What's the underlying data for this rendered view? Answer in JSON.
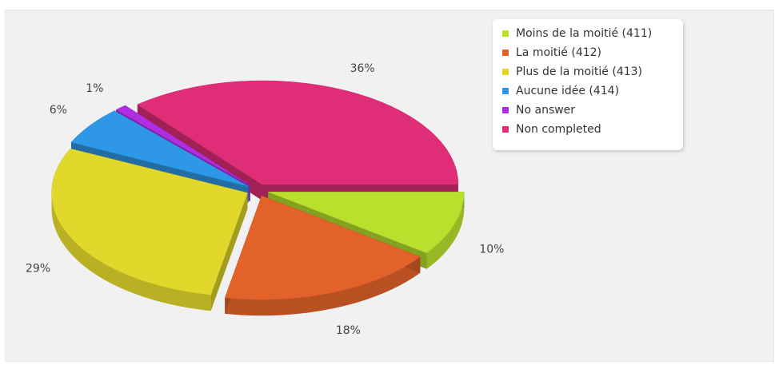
{
  "chart_data": {
    "type": "pie",
    "style": "3d-exploded",
    "legend_position": "top-right",
    "slices": [
      {
        "label": "Moins de la moitié (411)",
        "value": 10,
        "value_label": "10%",
        "color": "#b8e02c"
      },
      {
        "label": "La moitié (412)",
        "value": 18,
        "value_label": "18%",
        "color": "#e2622a"
      },
      {
        "label": "Plus de la moitié (413)",
        "value": 29,
        "value_label": "29%",
        "color": "#e2d82b"
      },
      {
        "label": "Aucune idée (414)",
        "value": 6,
        "value_label": "6%",
        "color": "#2e98e6"
      },
      {
        "label": "No answer",
        "value": 1,
        "value_label": "1%",
        "color": "#b02de2"
      },
      {
        "label": "Non completed",
        "value": 36,
        "value_label": "36%",
        "color": "#e02d77"
      }
    ]
  }
}
